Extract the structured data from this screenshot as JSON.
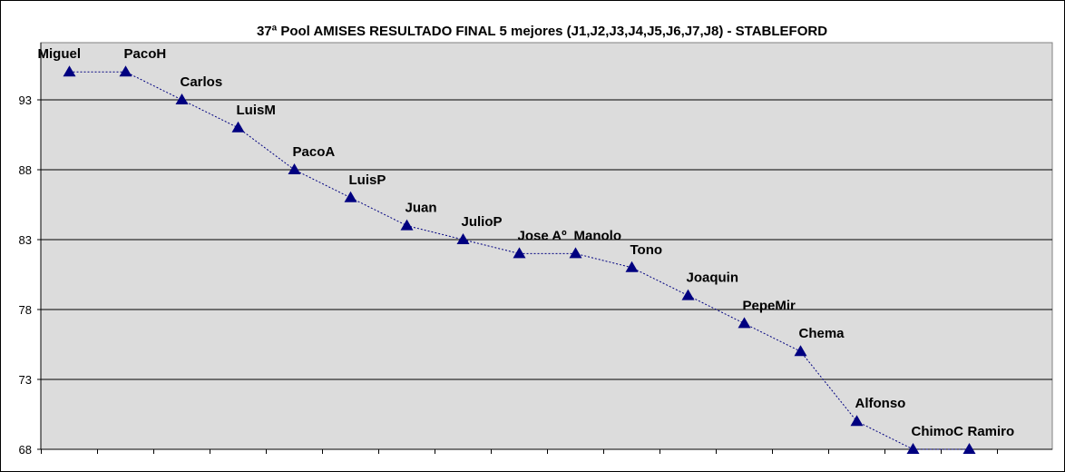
{
  "chart_data": {
    "type": "line",
    "title": "37ª Pool AMISES RESULTADO FINAL 5 mejores (J1,J2,J3,J4,J5,J6,J7,J8)  - STABLEFORD",
    "xlabel": "",
    "ylabel": "",
    "ylim": [
      68,
      95
    ],
    "yticks": [
      68,
      73,
      78,
      83,
      88,
      93
    ],
    "grid": true,
    "legend": "none",
    "plot_background": "#dcdcdc",
    "series_color": "#000080",
    "marker": "triangle",
    "line_style": "dotted",
    "categories": [
      "Miguel",
      "PacoH",
      "Carlos",
      "LuisM",
      "PacoA",
      "LuisP",
      "Juan",
      "JulioP",
      "Jose Aº",
      "Manolo",
      "Tono",
      "Joaquin",
      "PepeMir",
      "Chema",
      "Alfonso",
      "ChimoC",
      "Ramiro"
    ],
    "values": [
      95,
      95,
      93,
      91,
      88,
      86,
      84,
      83,
      82,
      82,
      81,
      79,
      77,
      75,
      70,
      68,
      68
    ]
  }
}
